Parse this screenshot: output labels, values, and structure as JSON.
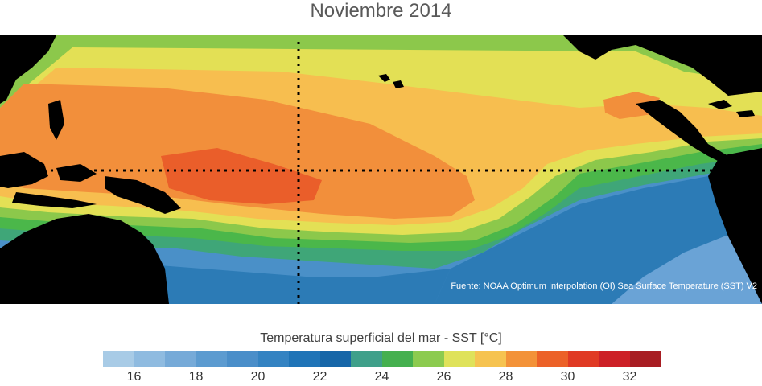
{
  "title": "Noviembre 2014",
  "map": {
    "source": "Fuente: NOAA Optimum Interpolation (OI) Sea Surface Temperature (SST) V2",
    "land_color": "#000000",
    "reference_lines": [
      "equator-line",
      "meridian-line"
    ],
    "temperature_zones": [
      {
        "name": "zone-cold-south",
        "temp_c": 20,
        "color": "#4a90c8"
      },
      {
        "name": "zone-east-cold",
        "temp_c": 22,
        "color": "#2c7bb6"
      },
      {
        "name": "zone-cool-green",
        "temp_c": 24,
        "color": "#3fa678"
      },
      {
        "name": "zone-green",
        "temp_c": 25,
        "color": "#4bb74a"
      },
      {
        "name": "zone-lightgreen",
        "temp_c": 26,
        "color": "#8cc84b"
      },
      {
        "name": "zone-yellow",
        "temp_c": 27,
        "color": "#e3e055"
      },
      {
        "name": "zone-lightorange",
        "temp_c": 28,
        "color": "#f7be4f"
      },
      {
        "name": "zone-orange",
        "temp_c": 29,
        "color": "#f28f3b"
      },
      {
        "name": "zone-warm",
        "temp_c": 30,
        "color": "#ea5e2a"
      }
    ]
  },
  "colorbar": {
    "title": "Temperatura superficial del mar - SST  [°C]",
    "min": 15,
    "max": 33,
    "colors": [
      "#a8cbe6",
      "#8fbbe0",
      "#76aad8",
      "#5c9bd0",
      "#4a8ec9",
      "#3483c2",
      "#1f74b7",
      "#1666a8",
      "#3fa08a",
      "#45b04f",
      "#8ccb4f",
      "#dfe25a",
      "#f6c350",
      "#f39238",
      "#ec6128",
      "#e03a24",
      "#cd2027",
      "#a81d22"
    ],
    "ticks": [
      "16",
      "18",
      "20",
      "22",
      "24",
      "26",
      "28",
      "30",
      "32"
    ],
    "tick_values": [
      16,
      18,
      20,
      22,
      24,
      26,
      28,
      30,
      32
    ]
  }
}
